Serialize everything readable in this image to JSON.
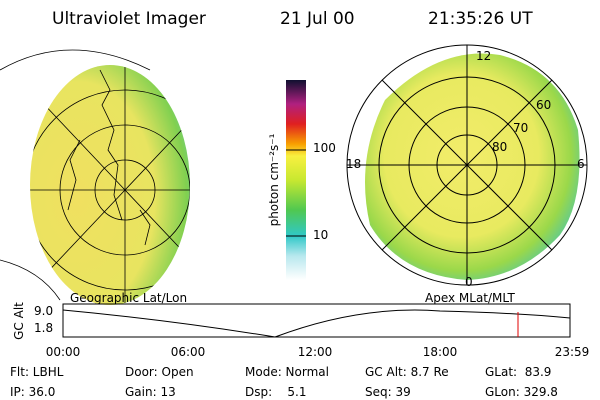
{
  "header": {
    "title": "Ultraviolet Imager",
    "date": "21 Jul 00",
    "time": "21:35:26 UT"
  },
  "colorbar": {
    "label": "photon cm⁻²s⁻¹",
    "ticks": [
      "100",
      "10"
    ]
  },
  "polar_plot": {
    "mlt_labels": [
      "12",
      "18",
      "6",
      "0"
    ],
    "mlat_labels": [
      "60",
      "70",
      "80"
    ]
  },
  "altitude_plot": {
    "left_label": "Geographic Lat/Lon",
    "right_label": "Apex MLat/MLT",
    "axis_label": "GC Alt",
    "y_labels": [
      "9.0",
      "1.8"
    ],
    "time_labels": [
      "00:00",
      "06:00",
      "12:00",
      "18:00",
      "23:59"
    ]
  },
  "status": {
    "rows": [
      [
        "Flt: LBHL",
        "Door: Open",
        "Mode: Normal",
        "GC Alt: 8.7 Re",
        "GLat:  83.9"
      ],
      [
        "IP: 36.0",
        "Gain: 13",
        "Dsp:    5.1",
        "Seq: 39",
        "GLon: 329.8"
      ]
    ]
  }
}
